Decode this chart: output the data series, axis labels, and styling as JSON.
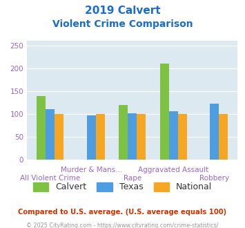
{
  "title_line1": "2019 Calvert",
  "title_line2": "Violent Crime Comparison",
  "categories": [
    "All Violent Crime",
    "Murder & Mans...",
    "Rape",
    "Aggravated Assault",
    "Robbery"
  ],
  "calvert": [
    140,
    0,
    120,
    210,
    0
  ],
  "texas": [
    110,
    97,
    101,
    106,
    122
  ],
  "national": [
    100,
    100,
    100,
    100,
    100
  ],
  "calvert_color": "#7dc242",
  "texas_color": "#4d9de0",
  "national_color": "#f5a623",
  "ylim": [
    0,
    260
  ],
  "yticks": [
    0,
    50,
    100,
    150,
    200,
    250
  ],
  "background_color": "#dce9f0",
  "title_color": "#1a6dcc",
  "footer_text": "Compared to U.S. average. (U.S. average equals 100)",
  "copyright_text": "© 2025 CityRating.com - https://www.cityrating.com/crime-statistics/",
  "footer_color": "#cc3300",
  "copyright_color": "#999999",
  "legend_labels": [
    "Calvert",
    "Texas",
    "National"
  ],
  "bar_width": 0.22,
  "tick_label_color": "#9966cc",
  "tick_label_fontsize": 7.5
}
